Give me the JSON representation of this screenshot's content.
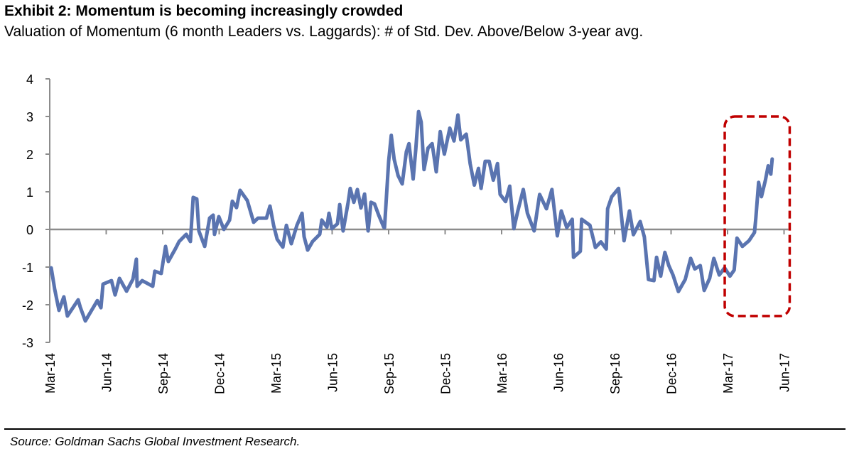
{
  "header": {
    "title": "Exhibit 2: Momentum is becoming increasingly crowded",
    "subtitle": "Valuation of Momentum (6 month Leaders vs. Laggards): # of Std. Dev. Above/Below 3-year avg."
  },
  "footer": {
    "source": "Source: Goldman Sachs Global Investment Research."
  },
  "chart_data": {
    "type": "line",
    "title": "Exhibit 2: Momentum is becoming increasingly crowded",
    "ylabel": "# of Std. Dev. Above/Below 3-year avg.",
    "xlabel": "",
    "x_unit": "months since Mar-14",
    "ylim": [
      -3,
      4
    ],
    "xlim": [
      0,
      39
    ],
    "yticks": [
      "4",
      "3",
      "2",
      "1",
      "0",
      "-1",
      "-2",
      "-3"
    ],
    "ytick_values": [
      4,
      3,
      2,
      1,
      0,
      -1,
      -2,
      -3
    ],
    "xticks": [
      "Mar-14",
      "Jun-14",
      "Sep-14",
      "Dec-14",
      "Mar-15",
      "Jun-15",
      "Sep-15",
      "Dec-15",
      "Mar-16",
      "Jun-16",
      "Sep-16",
      "Dec-16",
      "Mar-17",
      "Jun-17"
    ],
    "xtick_values": [
      0,
      3,
      6,
      9,
      12,
      15,
      18,
      21,
      24,
      27,
      30,
      33,
      36,
      39
    ],
    "grid": false,
    "line_color": "#5a74b0",
    "zero_line_color": "#8c8c8c",
    "annotation": {
      "type": "dashed-rounded-box",
      "color": "#c00000",
      "x_range": [
        35.85,
        39.3
      ],
      "y_range": [
        -2.3,
        3.0
      ]
    },
    "series": [
      {
        "name": "Momentum valuation",
        "x": [
          0.08,
          0.26,
          0.49,
          0.75,
          0.94,
          1.51,
          1.62,
          1.89,
          2.53,
          2.72,
          2.83,
          3.28,
          3.47,
          3.7,
          4.08,
          4.42,
          4.6,
          4.64,
          4.91,
          5.47,
          5.58,
          5.92,
          6.15,
          6.3,
          6.68,
          6.87,
          7.25,
          7.47,
          7.62,
          7.81,
          7.92,
          8.23,
          8.49,
          8.68,
          8.75,
          8.98,
          9.25,
          9.55,
          9.7,
          9.92,
          10.11,
          10.49,
          10.83,
          11.06,
          11.51,
          11.7,
          11.89,
          12.08,
          12.38,
          12.57,
          12.83,
          13.13,
          13.4,
          13.51,
          13.7,
          13.96,
          14.34,
          14.45,
          14.72,
          14.83,
          14.98,
          15.28,
          15.4,
          15.58,
          15.85,
          15.96,
          16.15,
          16.34,
          16.53,
          16.72,
          16.91,
          17.06,
          17.25,
          17.47,
          17.74,
          17.78,
          18.0,
          18.14,
          18.29,
          18.5,
          18.72,
          18.94,
          19.08,
          19.3,
          19.44,
          19.59,
          19.73,
          19.88,
          20.09,
          20.31,
          20.53,
          20.74,
          20.96,
          21.25,
          21.47,
          21.68,
          21.83,
          22.12,
          22.33,
          22.55,
          22.77,
          22.91,
          23.13,
          23.34,
          23.56,
          23.78,
          23.92,
          24.21,
          24.43,
          24.65,
          24.86,
          25.15,
          25.37,
          25.73,
          26.02,
          26.38,
          26.67,
          26.96,
          27.17,
          27.46,
          27.75,
          27.82,
          28.18,
          28.25,
          28.69,
          28.98,
          29.27,
          29.56,
          29.63,
          29.85,
          30.21,
          30.5,
          30.79,
          31.0,
          31.36,
          31.58,
          31.8,
          32.09,
          32.23,
          32.45,
          32.67,
          32.88,
          33.1,
          33.39,
          33.75,
          34.04,
          34.26,
          34.55,
          34.76,
          35.05,
          35.27,
          35.56,
          35.84,
          36.13,
          36.35,
          36.5,
          36.79,
          37.14,
          37.43,
          37.5,
          37.65,
          37.8,
          38.01,
          38.16,
          38.3,
          38.37
        ],
        "y": [
          -1.02,
          -1.58,
          -2.15,
          -1.79,
          -2.3,
          -1.87,
          -2.06,
          -2.43,
          -1.89,
          -2.08,
          -1.45,
          -1.36,
          -1.74,
          -1.3,
          -1.64,
          -1.32,
          -0.79,
          -1.51,
          -1.36,
          -1.51,
          -1.11,
          -1.17,
          -0.45,
          -0.85,
          -0.51,
          -0.32,
          -0.13,
          -0.32,
          0.85,
          0.81,
          -0.04,
          -0.45,
          0.3,
          0.38,
          -0.13,
          0.34,
          0.0,
          0.25,
          0.75,
          0.58,
          1.04,
          0.77,
          0.19,
          0.3,
          0.3,
          0.62,
          0.11,
          -0.26,
          -0.47,
          0.11,
          -0.38,
          0.11,
          0.43,
          -0.19,
          -0.55,
          -0.32,
          -0.13,
          0.25,
          0.06,
          0.43,
          0.02,
          0.15,
          0.66,
          -0.04,
          0.72,
          1.09,
          0.72,
          1.06,
          0.57,
          0.94,
          -0.04,
          0.72,
          0.68,
          0.38,
          0.06,
          0.05,
          1.81,
          2.5,
          1.87,
          1.43,
          1.21,
          2.06,
          2.28,
          1.34,
          2.13,
          3.13,
          2.85,
          1.59,
          2.16,
          2.28,
          1.53,
          2.6,
          2.0,
          2.69,
          2.35,
          3.04,
          2.38,
          2.53,
          1.75,
          1.18,
          1.62,
          1.09,
          1.81,
          1.81,
          1.31,
          1.75,
          0.93,
          0.74,
          1.15,
          0.02,
          0.49,
          1.06,
          0.43,
          -0.04,
          0.93,
          0.55,
          1.06,
          -0.17,
          0.49,
          0.05,
          0.27,
          -0.74,
          -0.58,
          0.27,
          0.11,
          -0.48,
          -0.33,
          -0.52,
          0.55,
          0.87,
          1.09,
          -0.3,
          0.49,
          -0.14,
          0.21,
          -0.2,
          -1.33,
          -1.36,
          -0.74,
          -1.24,
          -0.61,
          -0.96,
          -1.21,
          -1.65,
          -1.33,
          -0.77,
          -1.05,
          -0.96,
          -1.62,
          -1.3,
          -0.77,
          -1.21,
          -1.02,
          -1.24,
          -1.08,
          -0.23,
          -0.45,
          -0.3,
          -0.08,
          0.3,
          1.25,
          0.87,
          1.31,
          1.69,
          1.47,
          1.87
        ]
      }
    ]
  }
}
